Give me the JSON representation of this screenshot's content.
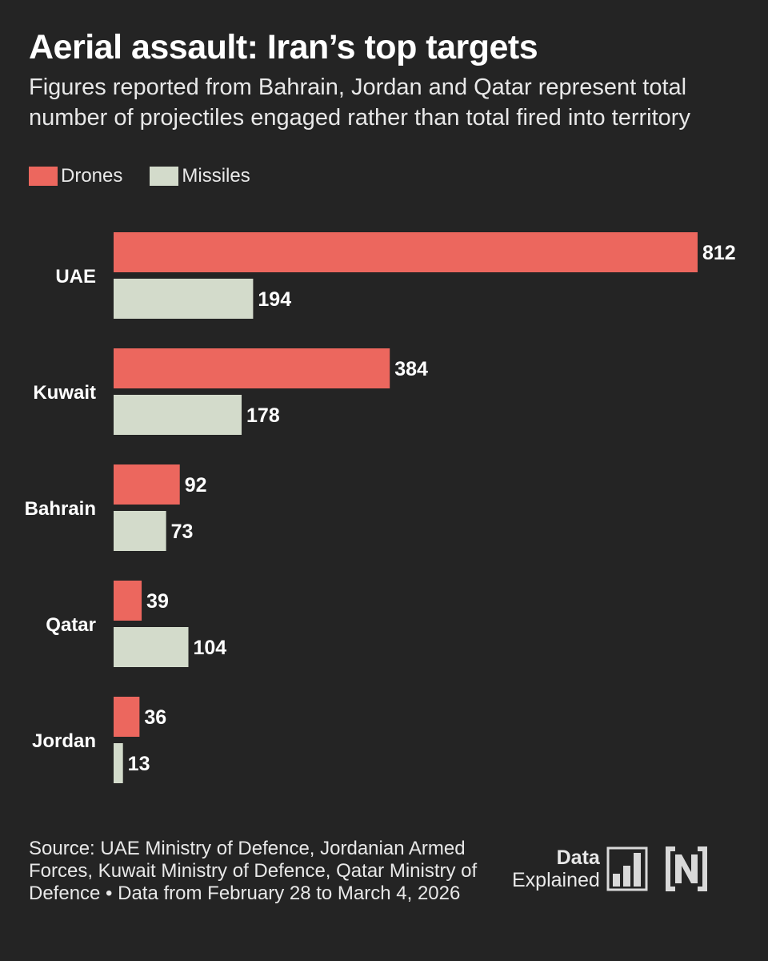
{
  "chart_data": {
    "type": "bar",
    "orientation": "horizontal",
    "title": "Aerial assault: Iran’s top targets",
    "subtitle": "Figures reported from Bahrain, Jordan and Qatar represent total number of projectiles engaged rather than total fired into territory",
    "categories": [
      "UAE",
      "Kuwait",
      "Bahrain",
      "Qatar",
      "Jordan"
    ],
    "series": [
      {
        "name": "Drones",
        "color": "#ec675e",
        "values": [
          812,
          384,
          92,
          39,
          36
        ]
      },
      {
        "name": "Missiles",
        "color": "#d3dbcb",
        "values": [
          194,
          178,
          73,
          104,
          13
        ]
      }
    ],
    "xlim": [
      0,
      812
    ],
    "grid": false,
    "legend": "top-left"
  },
  "footer": {
    "source": "Source: UAE Ministry of Defence, Jordanian Armed Forces, Kuwait Ministry of Defence, Qatar Ministry of Defence • Data from February 28 to March 4, 2026"
  },
  "brand": {
    "line1": "Data",
    "line2": "Explained",
    "color": "#d9d9d9"
  }
}
